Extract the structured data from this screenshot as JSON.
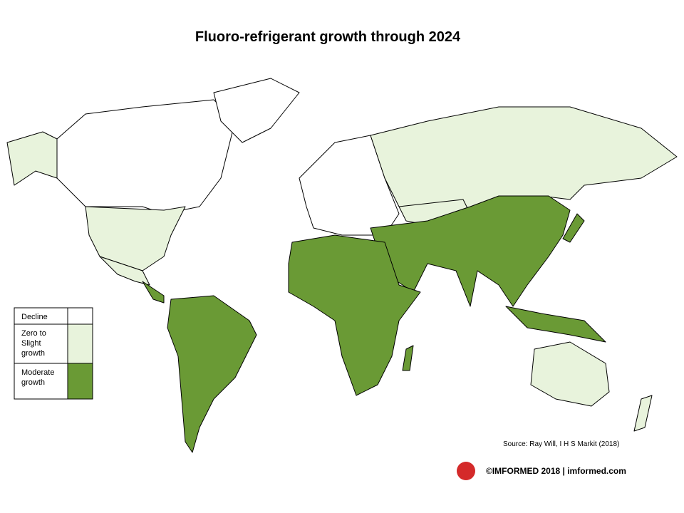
{
  "title": "Fluoro-refrigerant growth through 2024",
  "legend": [
    {
      "label": "Decline",
      "color": "#ffffff"
    },
    {
      "label": "Zero to Slight growth",
      "color": "#e8f3dc"
    },
    {
      "label": "Moderate growth",
      "color": "#6a9a35"
    }
  ],
  "source": "Source: Ray Will,  I H S Markit (2018)",
  "footer": "©IMFORMED 2018  | imformed.com"
}
